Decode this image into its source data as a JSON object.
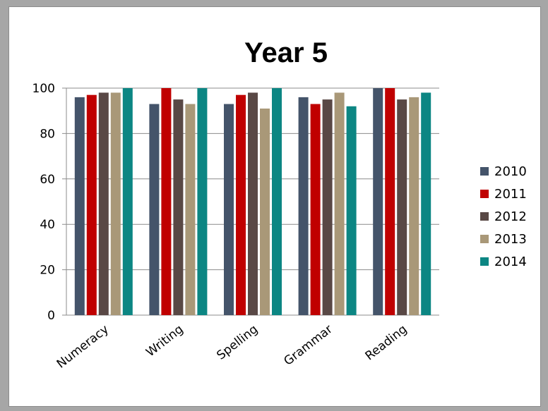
{
  "chart_data": {
    "type": "bar",
    "title": "Year 5",
    "categories": [
      "Numeracy",
      "Writing",
      "Spelling",
      "Grammar",
      "Reading"
    ],
    "series": [
      {
        "name": "2010",
        "color": "#44546a",
        "values": [
          96,
          93,
          93,
          96,
          100
        ]
      },
      {
        "name": "2011",
        "color": "#c00000",
        "values": [
          97,
          100,
          97,
          93,
          100
        ]
      },
      {
        "name": "2012",
        "color": "#594845",
        "values": [
          98,
          95,
          98,
          95,
          95
        ]
      },
      {
        "name": "2013",
        "color": "#a99878",
        "values": [
          98,
          93,
          91,
          98,
          96
        ]
      },
      {
        "name": "2014",
        "color": "#0c8683",
        "values": [
          100,
          100,
          100,
          92,
          98
        ]
      }
    ],
    "ylim": [
      0,
      100
    ],
    "yticks": [
      0,
      20,
      40,
      60,
      80,
      100
    ],
    "grid": true,
    "legend": "right"
  }
}
